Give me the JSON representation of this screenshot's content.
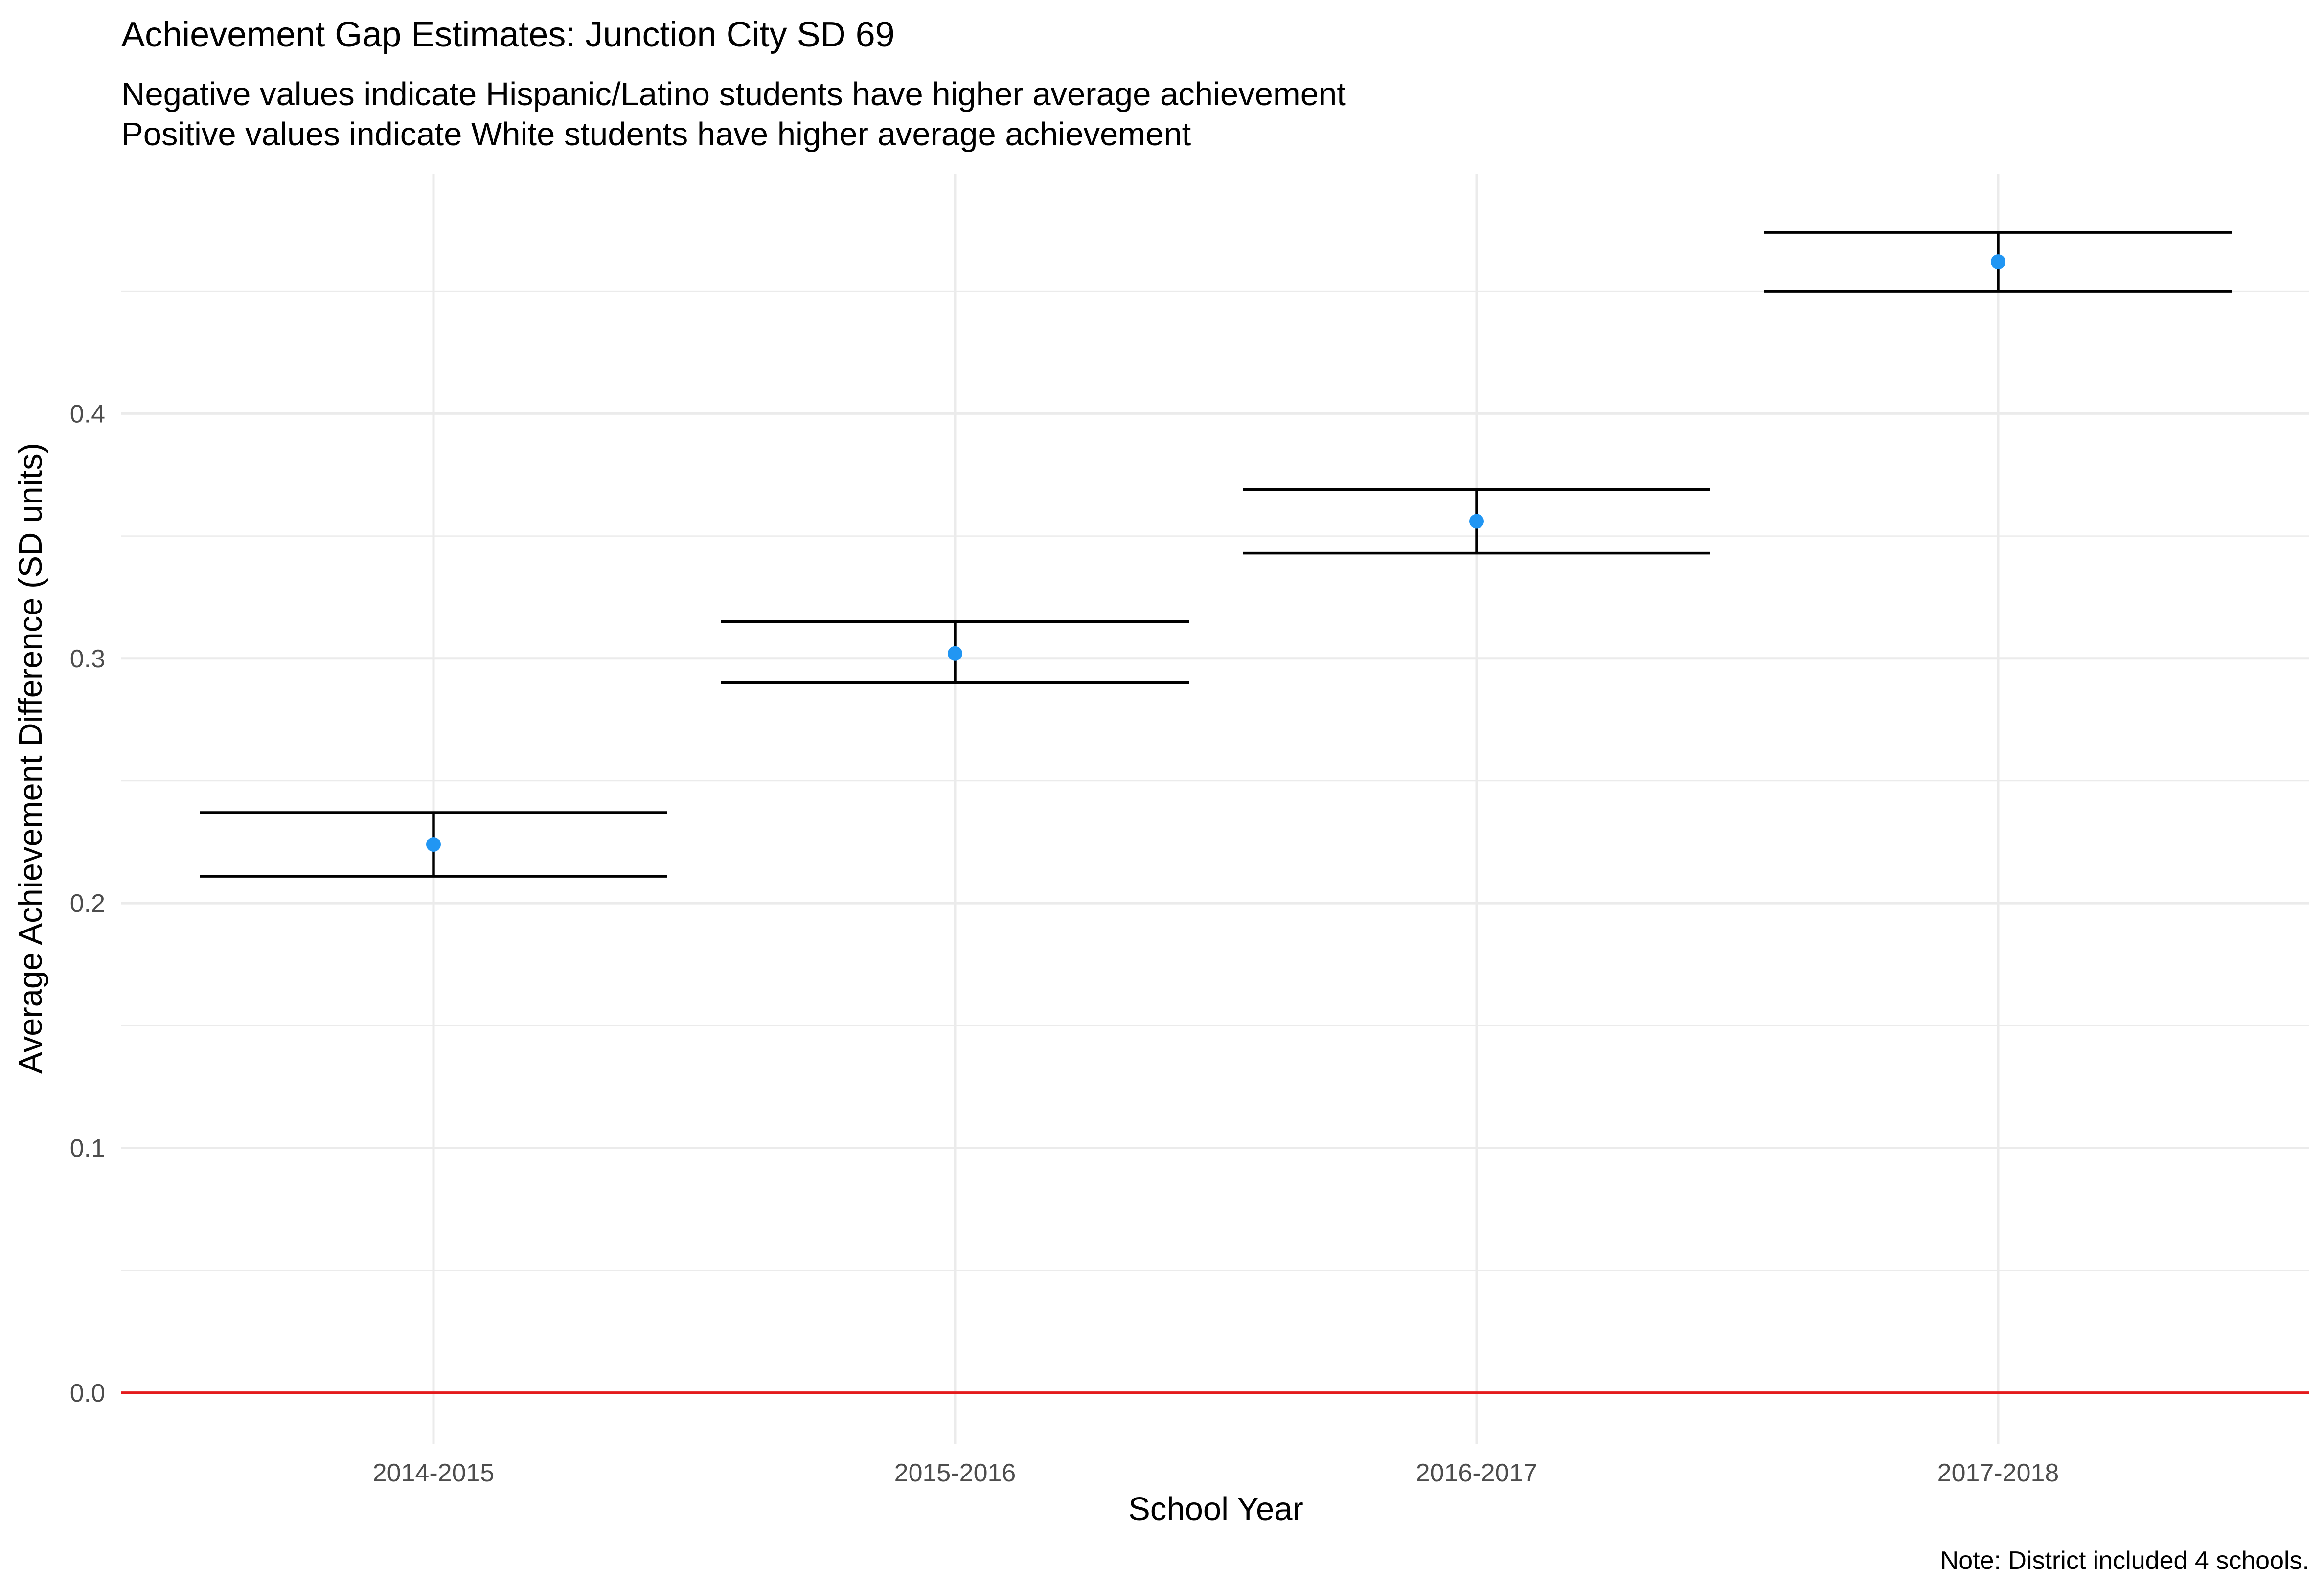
{
  "chart_data": {
    "type": "scatter",
    "title": "Achievement Gap Estimates: Junction City SD 69",
    "subtitle": [
      "Negative values indicate Hispanic/Latino students have higher average achievement",
      "Positive values indicate White students have higher average achievement"
    ],
    "xlabel": "School Year",
    "ylabel": "Average Achievement Difference (SD units)",
    "caption": "Note: District included 4 schools.",
    "categories": [
      "2014-2015",
      "2015-2016",
      "2016-2017",
      "2017-2018"
    ],
    "values": [
      0.224,
      0.302,
      0.356,
      0.462
    ],
    "lower": [
      0.211,
      0.29,
      0.343,
      0.45
    ],
    "upper": [
      0.237,
      0.315,
      0.369,
      0.474
    ],
    "ylim": [
      -0.021,
      0.498
    ],
    "yticks": [
      "0.0",
      "0.1",
      "0.2",
      "0.3",
      "0.4"
    ],
    "reference_line": 0,
    "grid": true,
    "colors": {
      "point": "#2196F3",
      "reference_line": "#E41A1C",
      "error_bar": "#000000"
    }
  }
}
